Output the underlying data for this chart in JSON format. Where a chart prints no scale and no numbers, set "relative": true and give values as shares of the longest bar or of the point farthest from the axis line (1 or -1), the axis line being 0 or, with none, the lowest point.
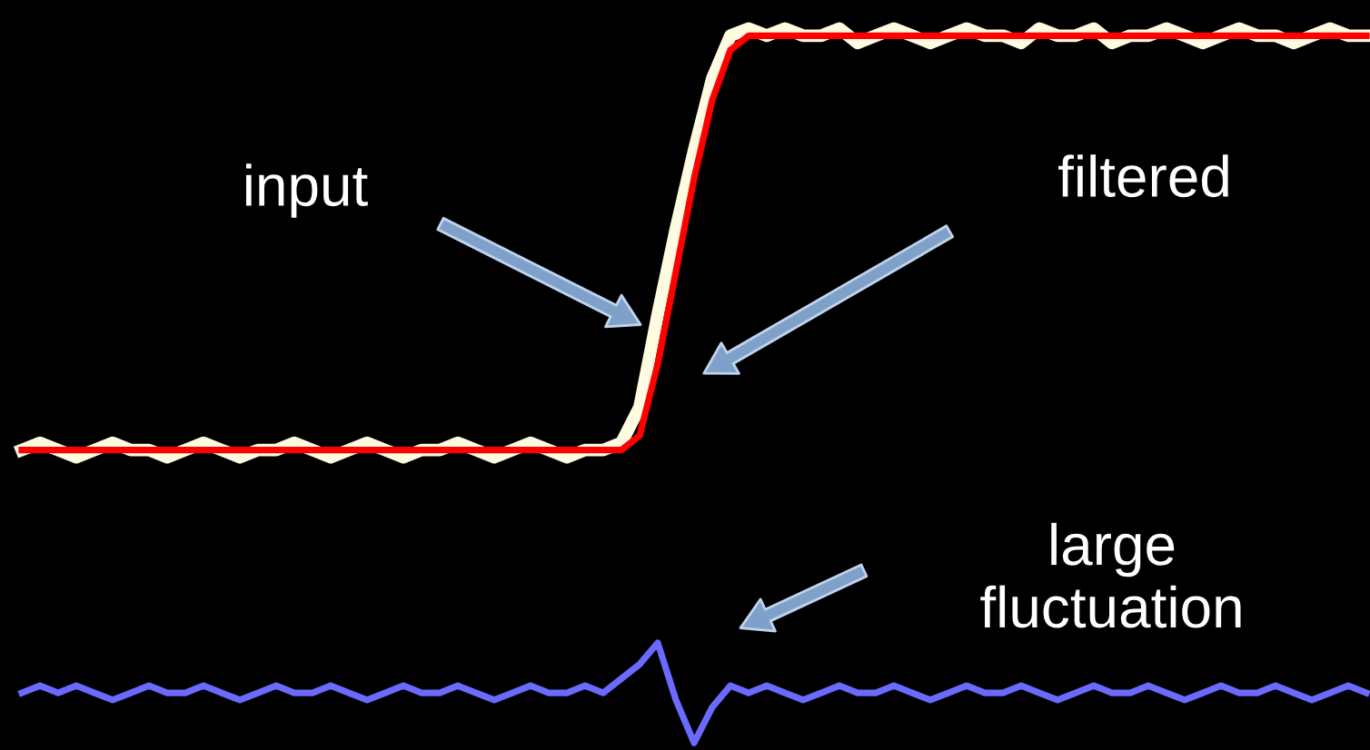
{
  "chart_data": {
    "type": "line",
    "relative": true,
    "legend": false,
    "grid": false,
    "marker": "none",
    "line_style": "solid",
    "categories": [
      null,
      null,
      null,
      null,
      null,
      null,
      null,
      null,
      null,
      null,
      null,
      null,
      null,
      null,
      null,
      null,
      null,
      null,
      null,
      null,
      null,
      null,
      null,
      null,
      null,
      null,
      null,
      null,
      null,
      null,
      null,
      null,
      null,
      null,
      null,
      null,
      null,
      null,
      null,
      null,
      null,
      null,
      null,
      null,
      null,
      null,
      null,
      null,
      null,
      null,
      null,
      null,
      null,
      null,
      null,
      null,
      null,
      null,
      null,
      null,
      null,
      null,
      null,
      null,
      null,
      null,
      null,
      null,
      null,
      null,
      null,
      null,
      null,
      null,
      null
    ],
    "series": [
      {
        "color": "#fffbe0",
        "values": [
          0.41,
          0.42,
          0.41,
          0.4,
          0.41,
          0.42,
          0.41,
          0.41,
          0.4,
          0.41,
          0.42,
          0.41,
          0.4,
          0.41,
          0.41,
          0.42,
          0.41,
          0.4,
          0.41,
          0.42,
          0.41,
          0.4,
          0.41,
          0.41,
          0.42,
          0.41,
          0.4,
          0.41,
          0.42,
          0.41,
          0.4,
          0.41,
          0.41,
          0.42,
          0.47,
          0.6,
          0.72,
          0.83,
          0.93,
          0.99,
          1.0,
          0.99,
          1.0,
          0.99,
          0.99,
          1.0,
          0.98,
          0.99,
          1.0,
          0.99,
          0.98,
          0.99,
          1.0,
          0.99,
          0.99,
          0.98,
          1.0,
          0.99,
          0.99,
          1.0,
          0.98,
          0.99,
          0.99,
          1.0,
          0.99,
          0.98,
          0.99,
          1.0,
          0.99,
          0.99,
          0.98,
          0.99,
          1.0,
          0.99,
          0.99
        ]
      },
      {
        "color": "#ff0000",
        "values": [
          0.41,
          0.41,
          0.41,
          0.41,
          0.41,
          0.41,
          0.41,
          0.41,
          0.41,
          0.41,
          0.41,
          0.41,
          0.41,
          0.41,
          0.41,
          0.41,
          0.41,
          0.41,
          0.41,
          0.41,
          0.41,
          0.41,
          0.41,
          0.41,
          0.41,
          0.41,
          0.41,
          0.41,
          0.41,
          0.41,
          0.41,
          0.41,
          0.41,
          0.41,
          0.43,
          0.53,
          0.66,
          0.79,
          0.9,
          0.97,
          0.99,
          0.99,
          0.99,
          0.99,
          0.99,
          0.99,
          0.99,
          0.99,
          0.99,
          0.99,
          0.99,
          0.99,
          0.99,
          0.99,
          0.99,
          0.99,
          0.99,
          0.99,
          0.99,
          0.99,
          0.99,
          0.99,
          0.99,
          0.99,
          0.99,
          0.99,
          0.99,
          0.99,
          0.99,
          0.99,
          0.99,
          0.99,
          0.99,
          0.99,
          0.99
        ]
      },
      {
        "color": "#6a6aff",
        "values": [
          0.07,
          0.08,
          0.07,
          0.08,
          0.07,
          0.06,
          0.07,
          0.08,
          0.07,
          0.07,
          0.08,
          0.07,
          0.06,
          0.07,
          0.08,
          0.07,
          0.07,
          0.08,
          0.07,
          0.06,
          0.07,
          0.08,
          0.07,
          0.07,
          0.08,
          0.07,
          0.06,
          0.07,
          0.08,
          0.07,
          0.07,
          0.08,
          0.07,
          0.09,
          0.11,
          0.14,
          0.06,
          0.0,
          0.05,
          0.08,
          0.07,
          0.08,
          0.07,
          0.06,
          0.07,
          0.08,
          0.07,
          0.07,
          0.08,
          0.07,
          0.06,
          0.07,
          0.08,
          0.07,
          0.07,
          0.08,
          0.07,
          0.06,
          0.07,
          0.08,
          0.07,
          0.07,
          0.08,
          0.07,
          0.06,
          0.07,
          0.08,
          0.07,
          0.07,
          0.08,
          0.07,
          0.06,
          0.07,
          0.08,
          0.07
        ]
      }
    ],
    "annotations": [
      "input",
      "filtered",
      "large fluctuation"
    ]
  }
}
